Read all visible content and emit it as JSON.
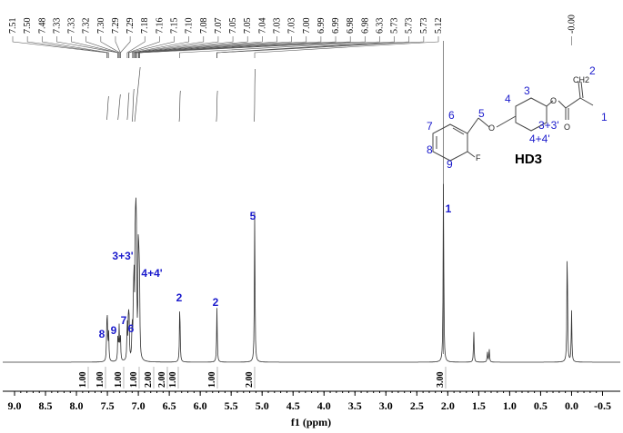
{
  "chart_data": {
    "type": "line",
    "title": "",
    "xlabel": "f1 (ppm)",
    "ylabel": "",
    "xlim": [
      9.0,
      -0.5
    ],
    "x_direction": "reversed",
    "grid": false,
    "x_ticks": [
      9.0,
      8.5,
      8.0,
      7.5,
      7.0,
      6.5,
      6.0,
      5.5,
      5.0,
      4.5,
      4.0,
      3.5,
      3.0,
      2.5,
      2.0,
      1.5,
      1.0,
      0.5,
      0.0,
      -0.5
    ],
    "x_tick_labels": [
      "9.0",
      "8.5",
      "8.0",
      "7.5",
      "7.0",
      "6.5",
      "6.0",
      "5.5",
      "5.0",
      "4.5",
      "4.0",
      "3.5",
      "3.0",
      "2.5",
      "2.0",
      "1.5",
      "1.0",
      "0.5",
      "0.0",
      "-0.5"
    ],
    "peak_list": [
      "7.51",
      "7.50",
      "7.48",
      "7.33",
      "7.33",
      "7.32",
      "7.30",
      "7.29",
      "7.29",
      "7.18",
      "7.16",
      "7.15",
      "7.10",
      "7.08",
      "7.07",
      "7.05",
      "7.05",
      "7.04",
      "7.03",
      "7.03",
      "7.00",
      "6.99",
      "6.99",
      "6.98",
      "6.98",
      "6.33",
      "5.73",
      "5.73",
      "5.73",
      "5.12"
    ],
    "reference_peak": "-0.00",
    "peaks": [
      {
        "ppm": 7.51,
        "height": 0.12
      },
      {
        "ppm": 7.5,
        "height": 0.14
      },
      {
        "ppm": 7.48,
        "height": 0.11
      },
      {
        "ppm": 7.33,
        "height": 0.1
      },
      {
        "ppm": 7.31,
        "height": 0.13
      },
      {
        "ppm": 7.29,
        "height": 0.1
      },
      {
        "ppm": 7.18,
        "height": 0.15
      },
      {
        "ppm": 7.16,
        "height": 0.17
      },
      {
        "ppm": 7.15,
        "height": 0.14
      },
      {
        "ppm": 7.1,
        "height": 0.14
      },
      {
        "ppm": 7.08,
        "height": 0.16
      },
      {
        "ppm": 7.07,
        "height": 0.3
      },
      {
        "ppm": 7.05,
        "height": 0.45
      },
      {
        "ppm": 7.04,
        "height": 0.42
      },
      {
        "ppm": 7.03,
        "height": 0.36
      },
      {
        "ppm": 7.0,
        "height": 0.4
      },
      {
        "ppm": 6.99,
        "height": 0.3
      },
      {
        "ppm": 6.98,
        "height": 0.22
      },
      {
        "ppm": 6.33,
        "height": 0.24
      },
      {
        "ppm": 5.73,
        "height": 0.21
      },
      {
        "ppm": 5.12,
        "height": 0.58
      },
      {
        "ppm": 2.07,
        "height": 0.72
      },
      {
        "ppm": 1.58,
        "height": 0.12
      },
      {
        "ppm": 1.36,
        "height": 0.04
      },
      {
        "ppm": 1.33,
        "height": 0.05
      },
      {
        "ppm": 0.07,
        "height": 0.47
      },
      {
        "ppm": 0.0,
        "height": 0.2
      }
    ],
    "integrations": [
      {
        "ppm": 7.5,
        "label": "1.00"
      },
      {
        "ppm": 7.32,
        "label": "1.00"
      },
      {
        "ppm": 7.17,
        "label": "1.00"
      },
      {
        "ppm": 7.09,
        "label": "1.00"
      },
      {
        "ppm": 7.05,
        "label": "2.00"
      },
      {
        "ppm": 6.99,
        "label": "2.00"
      },
      {
        "ppm": 6.33,
        "label": "1.00"
      },
      {
        "ppm": 5.73,
        "label": "1.00"
      },
      {
        "ppm": 5.12,
        "label": "2.00"
      },
      {
        "ppm": 2.07,
        "label": "3.00"
      }
    ],
    "annotations": [
      {
        "ppm": 7.5,
        "text": "8"
      },
      {
        "ppm": 7.33,
        "text": "9"
      },
      {
        "ppm": 7.17,
        "text": "7"
      },
      {
        "ppm": 7.1,
        "text": "6"
      },
      {
        "ppm": 7.05,
        "text": "3+3'"
      },
      {
        "ppm": 6.99,
        "text": "4+4'"
      },
      {
        "ppm": 6.33,
        "text": "2"
      },
      {
        "ppm": 5.73,
        "text": "2"
      },
      {
        "ppm": 5.12,
        "text": "5"
      },
      {
        "ppm": 2.07,
        "text": "1"
      }
    ],
    "structure": {
      "compound_name": "HD3",
      "atom_numbers": [
        "2",
        "1",
        "3",
        "4",
        "3+3'",
        "4+4'",
        "5",
        "6",
        "7",
        "8",
        "9"
      ],
      "atom_labels": [
        "O",
        "O",
        "O",
        "F",
        "CH2"
      ]
    }
  },
  "colors": {
    "spectrum": "#333333",
    "annotation": "#1a1acc",
    "axis": "#000000"
  }
}
